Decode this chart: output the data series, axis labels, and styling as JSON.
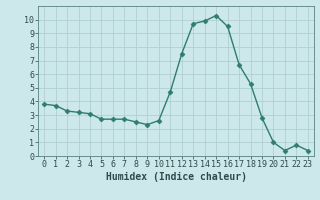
{
  "x": [
    0,
    1,
    2,
    3,
    4,
    5,
    6,
    7,
    8,
    9,
    10,
    11,
    12,
    13,
    14,
    15,
    16,
    17,
    18,
    19,
    20,
    21,
    22,
    23
  ],
  "y": [
    3.8,
    3.7,
    3.3,
    3.2,
    3.1,
    2.7,
    2.7,
    2.7,
    2.5,
    2.3,
    2.6,
    4.7,
    7.5,
    9.7,
    9.9,
    10.3,
    9.5,
    6.7,
    5.3,
    2.8,
    1.0,
    0.4,
    0.8,
    0.4
  ],
  "line_color": "#2e7d6e",
  "marker": "D",
  "marker_size": 2.5,
  "bg_color": "#cde8ea",
  "grid_color": "#b0cfd2",
  "xlabel": "Humidex (Indice chaleur)",
  "ylabel": "",
  "title": "",
  "xlim": [
    -0.5,
    23.5
  ],
  "ylim": [
    0,
    11
  ],
  "xticks": [
    0,
    1,
    2,
    3,
    4,
    5,
    6,
    7,
    8,
    9,
    10,
    11,
    12,
    13,
    14,
    15,
    16,
    17,
    18,
    19,
    20,
    21,
    22,
    23
  ],
  "yticks": [
    0,
    1,
    2,
    3,
    4,
    5,
    6,
    7,
    8,
    9,
    10
  ],
  "tick_color": "#2e4a4a",
  "xlabel_fontsize": 7,
  "tick_labelsize": 6
}
